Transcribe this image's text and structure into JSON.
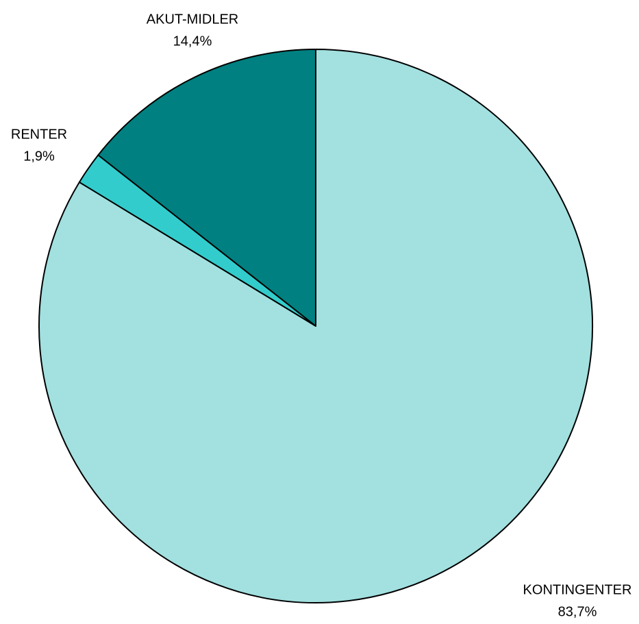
{
  "chart_data": {
    "type": "pie",
    "categories": [
      "KONTINGENTER",
      "RENTER",
      "AKUT-MIDLER"
    ],
    "values": [
      83.7,
      1.9,
      14.4
    ],
    "value_labels": [
      "83,7%",
      "1,9%",
      "14,4%"
    ],
    "colors": [
      "#a3e0e0",
      "#33cccc",
      "#008080"
    ]
  }
}
